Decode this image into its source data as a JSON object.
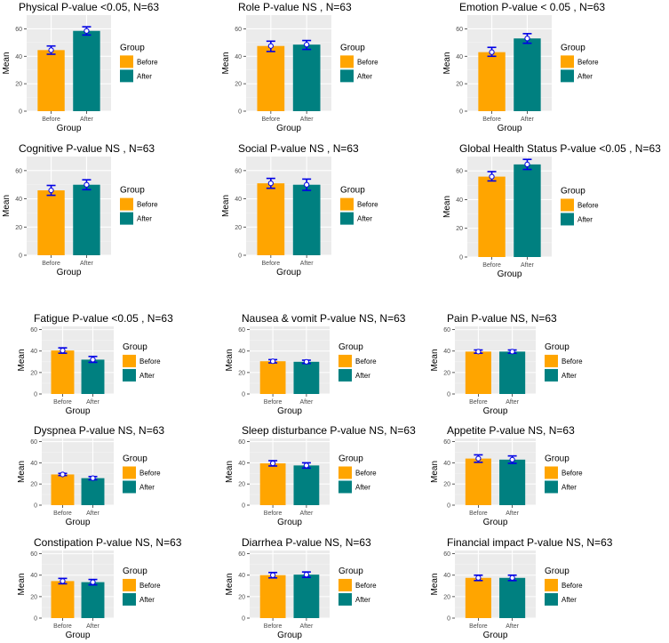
{
  "chart_data": [
    {
      "type": "bar",
      "title": "Physical P-value <0.05, N=63",
      "xlabel": "Group",
      "ylabel": "Mean",
      "categories": [
        "Before",
        "After"
      ],
      "values": [
        44.5,
        58.5
      ],
      "error_low": [
        41.5,
        55.5
      ],
      "error_high": [
        47.5,
        61.5
      ],
      "ylim": [
        0,
        70
      ],
      "yticks": [
        0,
        20,
        40,
        60
      ],
      "legend": {
        "title": "Group",
        "labels": [
          "Before",
          "After"
        ]
      },
      "colors": [
        "#FFA500",
        "#008080"
      ]
    },
    {
      "type": "bar",
      "title": "Role P-value  NS , N=63",
      "xlabel": "Group",
      "ylabel": "Mean",
      "categories": [
        "Before",
        "After"
      ],
      "values": [
        47.5,
        48.5
      ],
      "error_low": [
        43.5,
        45
      ],
      "error_high": [
        51,
        51.5
      ],
      "ylim": [
        0,
        70
      ],
      "yticks": [
        0,
        20,
        40,
        60
      ],
      "legend": {
        "title": "Group",
        "labels": [
          "Before",
          "After"
        ]
      },
      "colors": [
        "#FFA500",
        "#008080"
      ]
    },
    {
      "type": "bar",
      "title": "Emotion P-value  < 0.05 , N=63",
      "xlabel": "Group",
      "ylabel": "Mean",
      "categories": [
        "Before",
        "After"
      ],
      "values": [
        43,
        53
      ],
      "error_low": [
        40,
        49.5
      ],
      "error_high": [
        46.5,
        56.5
      ],
      "ylim": [
        0,
        70
      ],
      "yticks": [
        0,
        20,
        40,
        60
      ],
      "legend": {
        "title": "Group",
        "labels": [
          "Before",
          "After"
        ]
      },
      "colors": [
        "#FFA500",
        "#008080"
      ]
    },
    {
      "type": "bar",
      "title": "Cognitive P-value  NS , N=63",
      "xlabel": "Group",
      "ylabel": "Mean",
      "categories": [
        "Before",
        "After"
      ],
      "values": [
        46,
        50
      ],
      "error_low": [
        42.5,
        46.5
      ],
      "error_high": [
        49.5,
        53.5
      ],
      "ylim": [
        0,
        70
      ],
      "yticks": [
        0,
        20,
        40,
        60
      ],
      "legend": {
        "title": "Group",
        "labels": [
          "Before",
          "After"
        ]
      },
      "colors": [
        "#FFA500",
        "#008080"
      ]
    },
    {
      "type": "bar",
      "title": "Social P-value  NS , N=63",
      "xlabel": "Group",
      "ylabel": "Mean",
      "categories": [
        "Before",
        "After"
      ],
      "values": [
        51,
        50
      ],
      "error_low": [
        47.5,
        46
      ],
      "error_high": [
        54.5,
        54
      ],
      "ylim": [
        0,
        70
      ],
      "yticks": [
        0,
        20,
        40,
        60
      ],
      "legend": {
        "title": "Group",
        "labels": [
          "Before",
          "After"
        ]
      },
      "colors": [
        "#FFA500",
        "#008080"
      ]
    },
    {
      "type": "bar",
      "title": "Global Health Status P-value  <0.05 , N=63",
      "xlabel": "Group",
      "ylabel": "Mean",
      "categories": [
        "Before",
        "After"
      ],
      "values": [
        56,
        64.5
      ],
      "error_low": [
        53,
        61
      ],
      "error_high": [
        59.5,
        68
      ],
      "ylim": [
        0,
        70
      ],
      "yticks": [
        0,
        20,
        40,
        60
      ],
      "legend": {
        "title": "Group",
        "labels": [
          "Before",
          "After"
        ]
      },
      "colors": [
        "#FFA500",
        "#008080"
      ]
    },
    {
      "type": "bar",
      "title": "Fatigue P-value  <0.05 , N=63",
      "xlabel": "Group",
      "ylabel": "Mean",
      "categories": [
        "Before",
        "After"
      ],
      "values": [
        40.5,
        32
      ],
      "error_low": [
        38,
        29.5
      ],
      "error_high": [
        43,
        35
      ],
      "ylim": [
        0,
        63
      ],
      "yticks": [
        0,
        20,
        40,
        60
      ],
      "legend": {
        "title": "Group",
        "labels": [
          "Before",
          "After"
        ]
      },
      "colors": [
        "#FFA500",
        "#008080"
      ]
    },
    {
      "type": "bar",
      "title": "Nausea & vomit P-value NS, N=63",
      "xlabel": "Group",
      "ylabel": "Mean",
      "categories": [
        "Before",
        "After"
      ],
      "values": [
        30.5,
        30
      ],
      "error_low": [
        29,
        28.5
      ],
      "error_high": [
        32,
        31.5
      ],
      "ylim": [
        0,
        63
      ],
      "yticks": [
        0,
        20,
        40,
        60
      ],
      "legend": {
        "title": "Group",
        "labels": [
          "Before",
          "After"
        ]
      },
      "colors": [
        "#FFA500",
        "#008080"
      ]
    },
    {
      "type": "bar",
      "title": "Pain P-value NS, N=63",
      "xlabel": "Group",
      "ylabel": "Mean",
      "categories": [
        "Before",
        "After"
      ],
      "values": [
        39.5,
        39.5
      ],
      "error_low": [
        38,
        38
      ],
      "error_high": [
        41,
        41
      ],
      "ylim": [
        0,
        63
      ],
      "yticks": [
        0,
        20,
        40,
        60
      ],
      "legend": {
        "title": "Group",
        "labels": [
          "Before",
          "After"
        ]
      },
      "colors": [
        "#FFA500",
        "#008080"
      ]
    },
    {
      "type": "bar",
      "title": "Dyspnea P-value NS, N=63",
      "xlabel": "Group",
      "ylabel": "Mean",
      "categories": [
        "Before",
        "After"
      ],
      "values": [
        29,
        25.5
      ],
      "error_low": [
        28,
        24
      ],
      "error_high": [
        30,
        27
      ],
      "ylim": [
        0,
        63
      ],
      "yticks": [
        0,
        20,
        40,
        60
      ],
      "legend": {
        "title": "Group",
        "labels": [
          "Before",
          "After"
        ]
      },
      "colors": [
        "#FFA500",
        "#008080"
      ]
    },
    {
      "type": "bar",
      "title": "Sleep disturbance P-value NS, N=63",
      "xlabel": "Group",
      "ylabel": "Mean",
      "categories": [
        "Before",
        "After"
      ],
      "values": [
        39.5,
        37.5
      ],
      "error_low": [
        37,
        35
      ],
      "error_high": [
        42,
        40
      ],
      "ylim": [
        0,
        63
      ],
      "yticks": [
        0,
        20,
        40,
        60
      ],
      "legend": {
        "title": "Group",
        "labels": [
          "Before",
          "After"
        ]
      },
      "colors": [
        "#FFA500",
        "#008080"
      ]
    },
    {
      "type": "bar",
      "title": "Appetite P-value NS, N=63",
      "xlabel": "Group",
      "ylabel": "Mean",
      "categories": [
        "Before",
        "After"
      ],
      "values": [
        44,
        43
      ],
      "error_low": [
        40.5,
        39.5
      ],
      "error_high": [
        47.5,
        46.5
      ],
      "ylim": [
        0,
        63
      ],
      "yticks": [
        0,
        20,
        40,
        60
      ],
      "legend": {
        "title": "Group",
        "labels": [
          "Before",
          "After"
        ]
      },
      "colors": [
        "#FFA500",
        "#008080"
      ]
    },
    {
      "type": "bar",
      "title": "Constipation P-value NS, N=63",
      "xlabel": "Group",
      "ylabel": "Mean",
      "categories": [
        "Before",
        "After"
      ],
      "values": [
        34.5,
        33.5
      ],
      "error_low": [
        32,
        31
      ],
      "error_high": [
        37,
        36
      ],
      "ylim": [
        0,
        63
      ],
      "yticks": [
        0,
        20,
        40,
        60
      ],
      "legend": {
        "title": "Group",
        "labels": [
          "Before",
          "After"
        ]
      },
      "colors": [
        "#FFA500",
        "#008080"
      ]
    },
    {
      "type": "bar",
      "title": "Diarrhea P-value NS, N=63",
      "xlabel": "Group",
      "ylabel": "Mean",
      "categories": [
        "Before",
        "After"
      ],
      "values": [
        40,
        40.5
      ],
      "error_low": [
        37.5,
        38
      ],
      "error_high": [
        42.5,
        43
      ],
      "ylim": [
        0,
        63
      ],
      "yticks": [
        0,
        20,
        40,
        60
      ],
      "legend": {
        "title": "Group",
        "labels": [
          "Before",
          "After"
        ]
      },
      "colors": [
        "#FFA500",
        "#008080"
      ]
    },
    {
      "type": "bar",
      "title": "Financial impact P-value NS, N=63",
      "xlabel": "Group",
      "ylabel": "Mean",
      "categories": [
        "Before",
        "After"
      ],
      "values": [
        37.5,
        37.5
      ],
      "error_low": [
        35,
        35
      ],
      "error_high": [
        40,
        40
      ],
      "ylim": [
        0,
        63
      ],
      "yticks": [
        0,
        20,
        40,
        60
      ],
      "legend": {
        "title": "Group",
        "labels": [
          "Before",
          "After"
        ]
      },
      "colors": [
        "#FFA500",
        "#008080"
      ]
    }
  ]
}
